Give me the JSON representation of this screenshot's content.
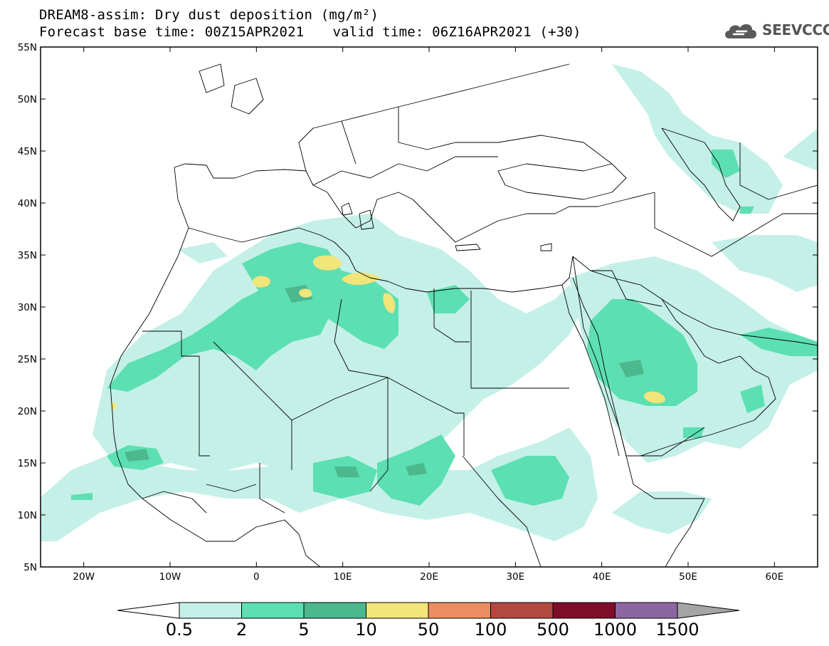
{
  "header": {
    "line1": "DREAM8-assim: Dry dust deposition (mg/m²)",
    "line2_left": "Forecast base time: 00Z15APR2021",
    "line2_right": "valid time: 06Z16APR2021 (+30)"
  },
  "logo": {
    "text": "SEEVCCC",
    "icon": "cloud-icon"
  },
  "map": {
    "lon_range": [
      -25,
      65
    ],
    "lat_range": [
      5,
      55
    ],
    "lat_labels": [
      {
        "lat": 55,
        "label": "55N"
      },
      {
        "lat": 50,
        "label": "50N"
      },
      {
        "lat": 45,
        "label": "45N"
      },
      {
        "lat": 40,
        "label": "40N"
      },
      {
        "lat": 35,
        "label": "35N"
      },
      {
        "lat": 30,
        "label": "30N"
      },
      {
        "lat": 25,
        "label": "25N"
      },
      {
        "lat": 20,
        "label": "20N"
      },
      {
        "lat": 15,
        "label": "15N"
      },
      {
        "lat": 10,
        "label": "10N"
      },
      {
        "lat": 5,
        "label": "5N"
      }
    ],
    "lon_labels": [
      {
        "lon": -20,
        "label": "20W"
      },
      {
        "lon": -10,
        "label": "10W"
      },
      {
        "lon": 0,
        "label": "0"
      },
      {
        "lon": 10,
        "label": "10E"
      },
      {
        "lon": 20,
        "label": "20E"
      },
      {
        "lon": 30,
        "label": "30E"
      },
      {
        "lon": 40,
        "label": "40E"
      },
      {
        "lon": 50,
        "label": "50E"
      },
      {
        "lon": 60,
        "label": "60E"
      }
    ]
  },
  "legend": {
    "labels": [
      "0.5",
      "2",
      "5",
      "10",
      "50",
      "100",
      "500",
      "1000",
      "1500"
    ],
    "colors": [
      "#ffffff",
      "#c4f0e8",
      "#5cdfb2",
      "#4cb88e",
      "#f2e57a",
      "#eb8d62",
      "#b04a40",
      "#7e0e2a",
      "#8c66a0",
      "#a5a5a5"
    ]
  }
}
